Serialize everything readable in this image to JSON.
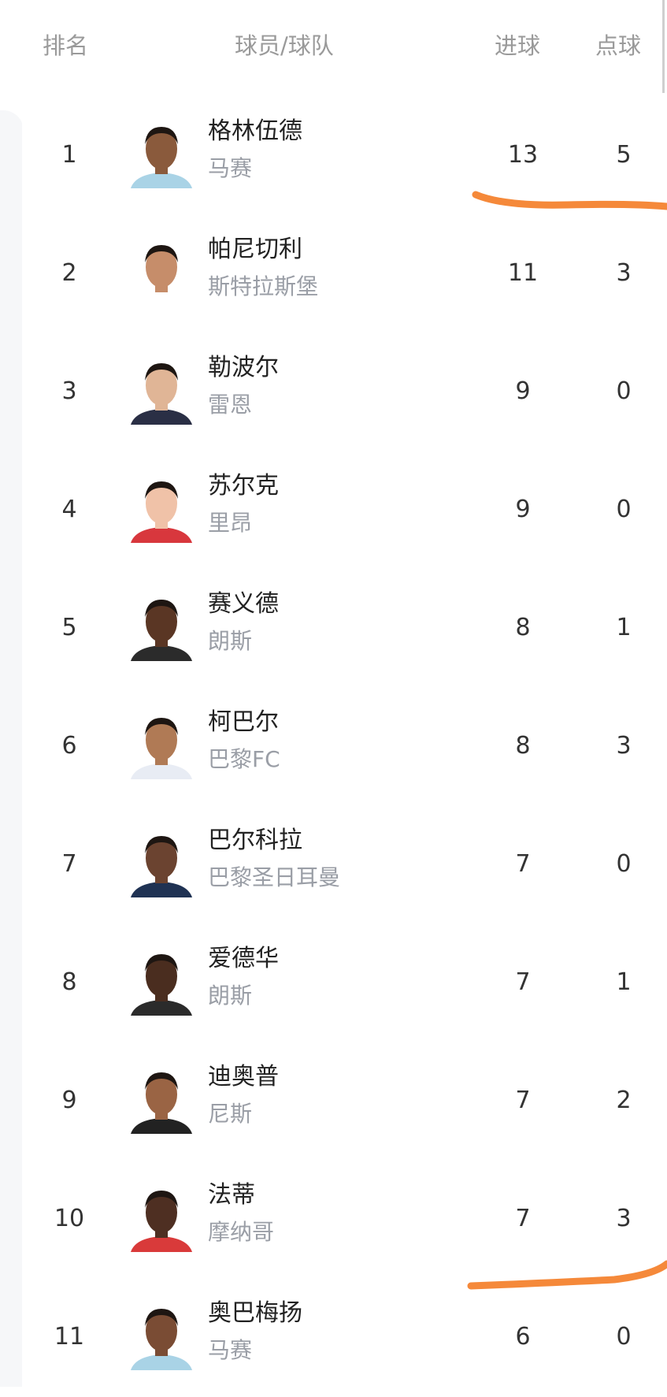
{
  "header": {
    "rank": "排名",
    "player_team": "球员/球队",
    "goals": "进球",
    "penalties": "点球"
  },
  "colors": {
    "annotation": "#f5893a",
    "muted": "#9a9ea6"
  },
  "rows": [
    {
      "rank": "1",
      "name": "格林伍德",
      "team": "马赛",
      "goals": "13",
      "penalties": "5",
      "skin": "#8a5a3c",
      "shirt": "#a9d3e6"
    },
    {
      "rank": "2",
      "name": "帕尼切利",
      "team": "斯特拉斯堡",
      "goals": "11",
      "penalties": "3",
      "skin": "#c68d6a",
      "shirt": "#ffffff"
    },
    {
      "rank": "3",
      "name": "勒波尔",
      "team": "雷恩",
      "goals": "9",
      "penalties": "0",
      "skin": "#e0b596",
      "shirt": "#2a2f45"
    },
    {
      "rank": "4",
      "name": "苏尔克",
      "team": "里昂",
      "goals": "9",
      "penalties": "0",
      "skin": "#f0c2a8",
      "shirt": "#d8373d"
    },
    {
      "rank": "5",
      "name": "赛义德",
      "team": "朗斯",
      "goals": "8",
      "penalties": "1",
      "skin": "#5a3624",
      "shirt": "#2b2b2b"
    },
    {
      "rank": "6",
      "name": "柯巴尔",
      "team": "巴黎FC",
      "goals": "8",
      "penalties": "3",
      "skin": "#b07a55",
      "shirt": "#e8ecf4"
    },
    {
      "rank": "7",
      "name": "巴尔科拉",
      "team": "巴黎圣日耳曼",
      "goals": "7",
      "penalties": "0",
      "skin": "#6b4330",
      "shirt": "#1f3253"
    },
    {
      "rank": "8",
      "name": "爱德华",
      "team": "朗斯",
      "goals": "7",
      "penalties": "1",
      "skin": "#4a2d1f",
      "shirt": "#2b2b2b"
    },
    {
      "rank": "9",
      "name": "迪奥普",
      "team": "尼斯",
      "goals": "7",
      "penalties": "2",
      "skin": "#9a6444",
      "shirt": "#222222"
    },
    {
      "rank": "10",
      "name": "法蒂",
      "team": "摩纳哥",
      "goals": "7",
      "penalties": "3",
      "skin": "#4e2f22",
      "shirt": "#d93a3a"
    },
    {
      "rank": "11",
      "name": "奥巴梅扬",
      "team": "马赛",
      "goals": "6",
      "penalties": "0",
      "skin": "#7a4c34",
      "shirt": "#a9d3e6"
    }
  ]
}
